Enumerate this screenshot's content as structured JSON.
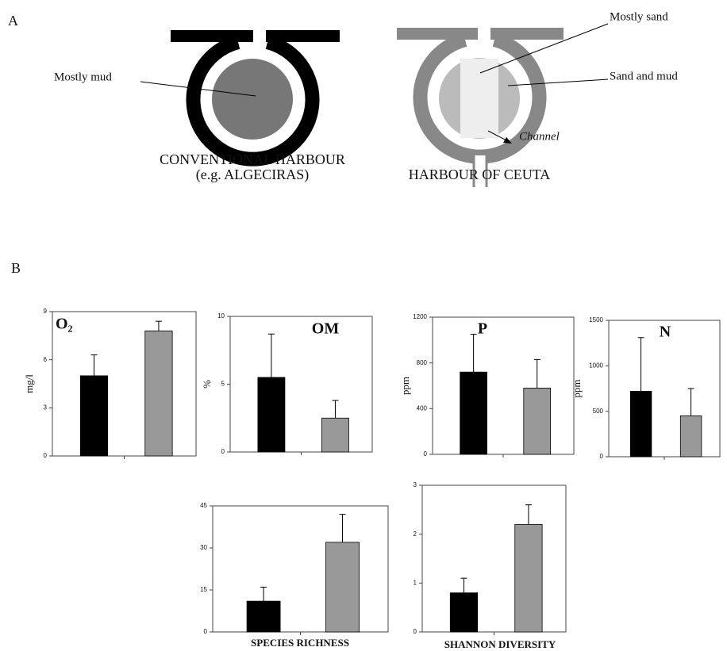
{
  "panel_a": {
    "label": "A",
    "mud": "Mostly mud",
    "conventional": "CONVENTIONAL HARBOUR",
    "example": "(e.g. ALGECIRAS)",
    "sand": "Mostly sand",
    "sand_mud": "Sand and mud",
    "channel": "Channel",
    "ceuta": "HARBOUR OF CEUTA"
  },
  "panel_b": {
    "label": "B"
  },
  "chart_data": [
    {
      "type": "bar",
      "title": "O₂",
      "y_label": "mg/l",
      "categories": [
        null,
        null
      ],
      "values": [
        5.0,
        7.8
      ],
      "errors": [
        1.3,
        0.6
      ],
      "colors": [
        "#000000",
        "#999999"
      ],
      "ylim": [
        0,
        9
      ],
      "yticks": [
        0,
        3,
        6,
        9
      ]
    },
    {
      "type": "bar",
      "title": "OM",
      "y_label": "%",
      "categories": [
        null,
        null
      ],
      "values": [
        5.5,
        2.5
      ],
      "errors": [
        3.2,
        1.3
      ],
      "colors": [
        "#000000",
        "#999999"
      ],
      "ylim": [
        0,
        10
      ],
      "yticks": [
        0,
        5,
        10
      ]
    },
    {
      "type": "bar",
      "title": "P",
      "y_label": "ppm",
      "categories": [
        null,
        null
      ],
      "values": [
        720,
        580
      ],
      "errors": [
        330,
        250
      ],
      "colors": [
        "#000000",
        "#999999"
      ],
      "ylim": [
        0,
        1200
      ],
      "yticks": [
        0,
        400,
        800,
        1200
      ]
    },
    {
      "type": "bar",
      "title": "N",
      "y_label": "ppm",
      "categories": [
        null,
        null
      ],
      "values": [
        720,
        450
      ],
      "errors": [
        590,
        300
      ],
      "colors": [
        "#000000",
        "#999999"
      ],
      "ylim": [
        0,
        1500
      ],
      "yticks": [
        0,
        500,
        1000,
        1500
      ]
    },
    {
      "type": "bar",
      "title": "SPECIES RICHNESS",
      "categories": [
        null,
        null
      ],
      "values": [
        11,
        32
      ],
      "errors": [
        5,
        10
      ],
      "colors": [
        "#000000",
        "#999999"
      ],
      "ylim": [
        0,
        45
      ],
      "yticks": [
        0,
        15,
        30,
        45
      ]
    },
    {
      "type": "bar",
      "title": "SHANNON DIVERSITY",
      "categories": [
        null,
        null
      ],
      "values": [
        0.8,
        2.2
      ],
      "errors": [
        0.3,
        0.4
      ],
      "colors": [
        "#000000",
        "#999999"
      ],
      "ylim": [
        0,
        3
      ],
      "yticks": [
        0,
        1,
        2,
        3
      ]
    }
  ]
}
